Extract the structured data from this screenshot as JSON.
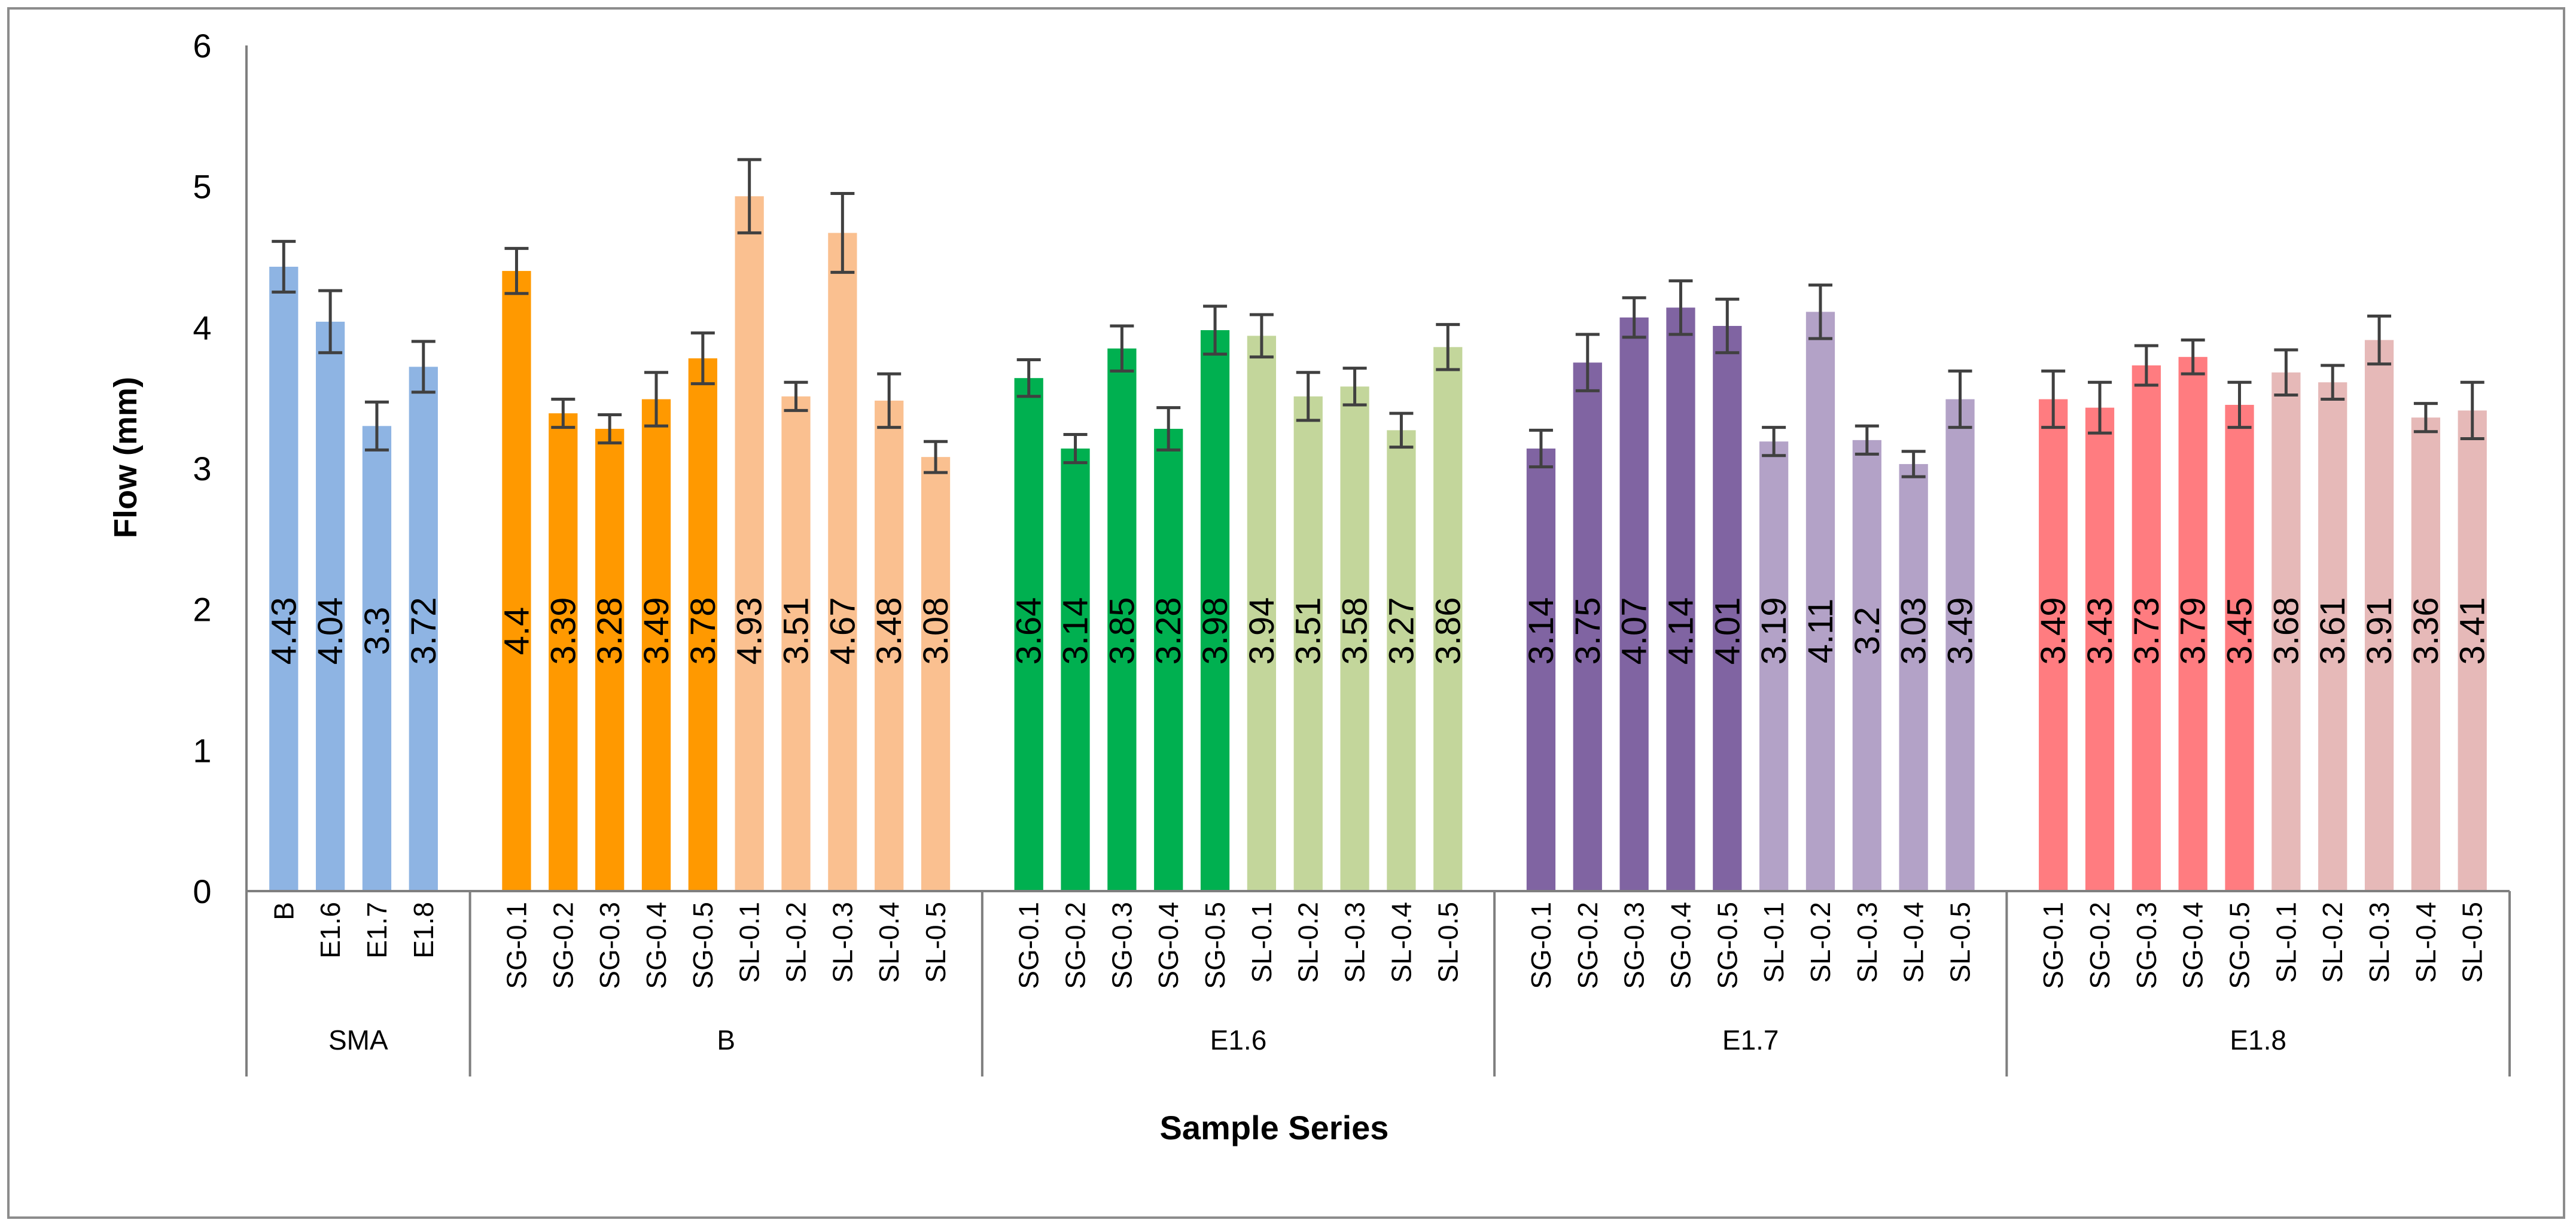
{
  "chart_data": {
    "type": "bar",
    "title": "",
    "xlabel": "Sample Series",
    "ylabel": "Flow (mm)",
    "ylim": [
      0,
      6
    ],
    "yticks": [
      "0",
      "1",
      "2",
      "3",
      "4",
      "5",
      "6"
    ],
    "grid": false,
    "groups": [
      {
        "name": "SMA",
        "bars": [
          {
            "label": "B",
            "value": 4.43,
            "value_label": "4.43",
            "error": 0.18,
            "color": "#8eb4e3"
          },
          {
            "label": "E1.6",
            "value": 4.04,
            "value_label": "4.04",
            "error": 0.22,
            "color": "#8eb4e3"
          },
          {
            "label": "E1.7",
            "value": 3.3,
            "value_label": "3.3",
            "error": 0.17,
            "color": "#8eb4e3"
          },
          {
            "label": "E1.8",
            "value": 3.72,
            "value_label": "3.72",
            "error": 0.18,
            "color": "#8eb4e3"
          }
        ]
      },
      {
        "name": "B",
        "bars": [
          {
            "label": "SG-0.1",
            "value": 4.4,
            "value_label": "4.4",
            "error": 0.16,
            "color": "#ff9900"
          },
          {
            "label": "SG-0.2",
            "value": 3.39,
            "value_label": "3.39",
            "error": 0.1,
            "color": "#ff9900"
          },
          {
            "label": "SG-0.3",
            "value": 3.28,
            "value_label": "3.28",
            "error": 0.1,
            "color": "#ff9900"
          },
          {
            "label": "SG-0.4",
            "value": 3.49,
            "value_label": "3.49",
            "error": 0.19,
            "color": "#ff9900"
          },
          {
            "label": "SG-0.5",
            "value": 3.78,
            "value_label": "3.78",
            "error": 0.18,
            "color": "#ff9900"
          },
          {
            "label": "SL-0.1",
            "value": 4.93,
            "value_label": "4.93",
            "error": 0.26,
            "color": "#fac090"
          },
          {
            "label": "SL-0.2",
            "value": 3.51,
            "value_label": "3.51",
            "error": 0.1,
            "color": "#fac090"
          },
          {
            "label": "SL-0.3",
            "value": 4.67,
            "value_label": "4.67",
            "error": 0.28,
            "color": "#fac090"
          },
          {
            "label": "SL-0.4",
            "value": 3.48,
            "value_label": "3.48",
            "error": 0.19,
            "color": "#fac090"
          },
          {
            "label": "SL-0.5",
            "value": 3.08,
            "value_label": "3.08",
            "error": 0.11,
            "color": "#fac090"
          }
        ]
      },
      {
        "name": "E1.6",
        "bars": [
          {
            "label": "SG-0.1",
            "value": 3.64,
            "value_label": "3.64",
            "error": 0.13,
            "color": "#00b050"
          },
          {
            "label": "SG-0.2",
            "value": 3.14,
            "value_label": "3.14",
            "error": 0.1,
            "color": "#00b050"
          },
          {
            "label": "SG-0.3",
            "value": 3.85,
            "value_label": "3.85",
            "error": 0.16,
            "color": "#00b050"
          },
          {
            "label": "SG-0.4",
            "value": 3.28,
            "value_label": "3.28",
            "error": 0.15,
            "color": "#00b050"
          },
          {
            "label": "SG-0.5",
            "value": 3.98,
            "value_label": "3.98",
            "error": 0.17,
            "color": "#00b050"
          },
          {
            "label": "SL-0.1",
            "value": 3.94,
            "value_label": "3.94",
            "error": 0.15,
            "color": "#c3d69b"
          },
          {
            "label": "SL-0.2",
            "value": 3.51,
            "value_label": "3.51",
            "error": 0.17,
            "color": "#c3d69b"
          },
          {
            "label": "SL-0.3",
            "value": 3.58,
            "value_label": "3.58",
            "error": 0.13,
            "color": "#c3d69b"
          },
          {
            "label": "SL-0.4",
            "value": 3.27,
            "value_label": "3.27",
            "error": 0.12,
            "color": "#c3d69b"
          },
          {
            "label": "SL-0.5",
            "value": 3.86,
            "value_label": "3.86",
            "error": 0.16,
            "color": "#c3d69b"
          }
        ]
      },
      {
        "name": "E1.7",
        "bars": [
          {
            "label": "SG-0.1",
            "value": 3.14,
            "value_label": "3.14",
            "error": 0.13,
            "color": "#8064a2"
          },
          {
            "label": "SG-0.2",
            "value": 3.75,
            "value_label": "3.75",
            "error": 0.2,
            "color": "#8064a2"
          },
          {
            "label": "SG-0.3",
            "value": 4.07,
            "value_label": "4.07",
            "error": 0.14,
            "color": "#8064a2"
          },
          {
            "label": "SG-0.4",
            "value": 4.14,
            "value_label": "4.14",
            "error": 0.19,
            "color": "#8064a2"
          },
          {
            "label": "SG-0.5",
            "value": 4.01,
            "value_label": "4.01",
            "error": 0.19,
            "color": "#8064a2"
          },
          {
            "label": "SL-0.1",
            "value": 3.19,
            "value_label": "3.19",
            "error": 0.1,
            "color": "#b3a2c7"
          },
          {
            "label": "SL-0.2",
            "value": 4.11,
            "value_label": "4.11",
            "error": 0.19,
            "color": "#b3a2c7"
          },
          {
            "label": "SL-0.3",
            "value": 3.2,
            "value_label": "3.2",
            "error": 0.1,
            "color": "#b3a2c7"
          },
          {
            "label": "SL-0.4",
            "value": 3.03,
            "value_label": "3.03",
            "error": 0.09,
            "color": "#b3a2c7"
          },
          {
            "label": "SL-0.5",
            "value": 3.49,
            "value_label": "3.49",
            "error": 0.2,
            "color": "#b3a2c7"
          }
        ]
      },
      {
        "name": "E1.8",
        "bars": [
          {
            "label": "SG-0.1",
            "value": 3.49,
            "value_label": "3.49",
            "error": 0.2,
            "color": "#ff7c80"
          },
          {
            "label": "SG-0.2",
            "value": 3.43,
            "value_label": "3.43",
            "error": 0.18,
            "color": "#ff7c80"
          },
          {
            "label": "SG-0.3",
            "value": 3.73,
            "value_label": "3.73",
            "error": 0.14,
            "color": "#ff7c80"
          },
          {
            "label": "SG-0.4",
            "value": 3.79,
            "value_label": "3.79",
            "error": 0.12,
            "color": "#ff7c80"
          },
          {
            "label": "SG-0.5",
            "value": 3.45,
            "value_label": "3.45",
            "error": 0.16,
            "color": "#ff7c80"
          },
          {
            "label": "SL-0.1",
            "value": 3.68,
            "value_label": "3.68",
            "error": 0.16,
            "color": "#e6b9b8"
          },
          {
            "label": "SL-0.2",
            "value": 3.61,
            "value_label": "3.61",
            "error": 0.12,
            "color": "#e6b9b8"
          },
          {
            "label": "SL-0.3",
            "value": 3.91,
            "value_label": "3.91",
            "error": 0.17,
            "color": "#e6b9b8"
          },
          {
            "label": "SL-0.4",
            "value": 3.36,
            "value_label": "3.36",
            "error": 0.1,
            "color": "#e6b9b8"
          },
          {
            "label": "SL-0.5",
            "value": 3.41,
            "value_label": "3.41",
            "error": 0.2,
            "color": "#e6b9b8"
          }
        ]
      }
    ]
  }
}
